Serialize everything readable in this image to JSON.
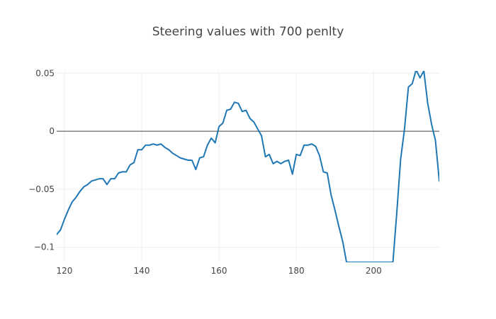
{
  "chart_data": {
    "type": "line",
    "title": "Steering values with 700 penlty",
    "xlabel": "",
    "ylabel": "",
    "xlim": [
      118,
      217
    ],
    "ylim": [
      -0.113,
      0.052
    ],
    "x_ticks": [
      120,
      140,
      160,
      180,
      200
    ],
    "x_tick_labels": [
      "120",
      "140",
      "160",
      "180",
      "200"
    ],
    "y_ticks": [
      0.05,
      0,
      -0.05,
      -0.1
    ],
    "y_tick_labels": [
      "0.05",
      "0",
      "−0.05",
      "−0.1"
    ],
    "grid": true,
    "zero_line": true,
    "legend": "none",
    "series": [
      {
        "color": "#1f77b4",
        "x": [
          118,
          119,
          120,
          121,
          122,
          123,
          124,
          125,
          126,
          127,
          128,
          129,
          130,
          131,
          132,
          133,
          134,
          135,
          136,
          137,
          138,
          139,
          140,
          141,
          142,
          143,
          144,
          145,
          146,
          147,
          148,
          149,
          150,
          151,
          152,
          153,
          154,
          155,
          156,
          157,
          158,
          159,
          160,
          161,
          162,
          163,
          164,
          165,
          166,
          167,
          168,
          169,
          170,
          171,
          172,
          173,
          174,
          175,
          176,
          177,
          178,
          179,
          180,
          181,
          182,
          183,
          184,
          185,
          186,
          187,
          188,
          189,
          190,
          191,
          192,
          193,
          205,
          206,
          207,
          208,
          209,
          210,
          211,
          212,
          213,
          214,
          215,
          216,
          217
        ],
        "y": [
          -0.089,
          -0.085,
          -0.076,
          -0.068,
          -0.061,
          -0.057,
          -0.052,
          -0.048,
          -0.046,
          -0.043,
          -0.042,
          -0.041,
          -0.041,
          -0.046,
          -0.041,
          -0.041,
          -0.036,
          -0.035,
          -0.035,
          -0.029,
          -0.027,
          -0.016,
          -0.016,
          -0.012,
          -0.012,
          -0.011,
          -0.012,
          -0.011,
          -0.014,
          -0.016,
          -0.019,
          -0.021,
          -0.023,
          -0.024,
          -0.025,
          -0.025,
          -0.033,
          -0.023,
          -0.022,
          -0.012,
          -0.006,
          -0.01,
          0.004,
          0.007,
          0.018,
          0.019,
          0.025,
          0.024,
          0.017,
          0.018,
          0.011,
          0.008,
          0.002,
          -0.004,
          -0.022,
          -0.02,
          -0.028,
          -0.026,
          -0.028,
          -0.026,
          -0.025,
          -0.037,
          -0.02,
          -0.021,
          -0.012,
          -0.012,
          -0.011,
          -0.013,
          -0.021,
          -0.035,
          -0.036,
          -0.055,
          -0.068,
          -0.082,
          -0.095,
          -0.113,
          -0.113,
          -0.07,
          -0.024,
          0.002,
          0.038,
          0.041,
          0.053,
          0.046,
          0.052,
          0.024,
          0.006,
          -0.008,
          -0.043
        ]
      }
    ]
  }
}
